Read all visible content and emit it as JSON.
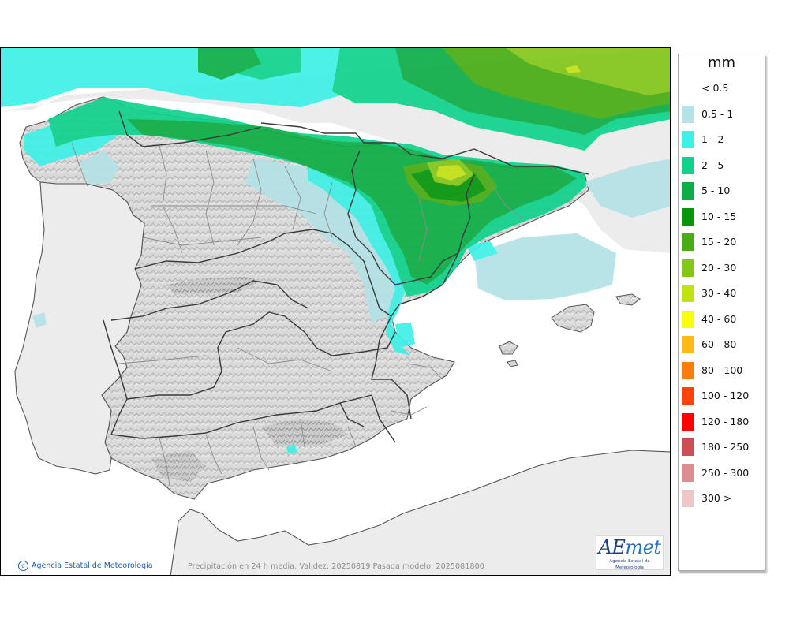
{
  "map": {
    "credit": "Agencia Estatal de Meteorología",
    "caption": "Precipitación en 24 h media. Validez: 20250819 Pasada modelo: 2025081800",
    "logo": {
      "word_ae": "AE",
      "word_met": "met",
      "subtitle": "Agencia Estatal de Meteorología"
    },
    "copyright_icon": "copyright-icon"
  },
  "legend": {
    "title": "mm",
    "items": [
      {
        "label": "< 0.5",
        "color": ""
      },
      {
        "label": "0.5 - 1",
        "color": "#b4e2e6"
      },
      {
        "label": "1 - 2",
        "color": "#3ff0e6"
      },
      {
        "label": "2 - 5",
        "color": "#0fd28c"
      },
      {
        "label": "5 - 10",
        "color": "#0dae45"
      },
      {
        "label": "10 - 15",
        "color": "#07960c"
      },
      {
        "label": "15 - 20",
        "color": "#48ad14"
      },
      {
        "label": "20 - 30",
        "color": "#83c71a"
      },
      {
        "label": "30 - 40",
        "color": "#c3e214"
      },
      {
        "label": "40 - 60",
        "color": "#fcfc04"
      },
      {
        "label": "60 - 80",
        "color": "#fcbb14"
      },
      {
        "label": "80 - 100",
        "color": "#fc7c0c"
      },
      {
        "label": "100 - 120",
        "color": "#fc430b"
      },
      {
        "label": "120 - 180",
        "color": "#fc0404"
      },
      {
        "label": "180 - 250",
        "color": "#cc4f54"
      },
      {
        "label": "250 - 300",
        "color": "#dc8d8f"
      },
      {
        "label": "300 >",
        "color": "#f0c6c6"
      }
    ]
  },
  "colors": {
    "land": "#dedede",
    "sea": "#ffffff",
    "outside_land": "#ececec",
    "border": "#3a3a3a",
    "province": "#8c8c8c"
  }
}
